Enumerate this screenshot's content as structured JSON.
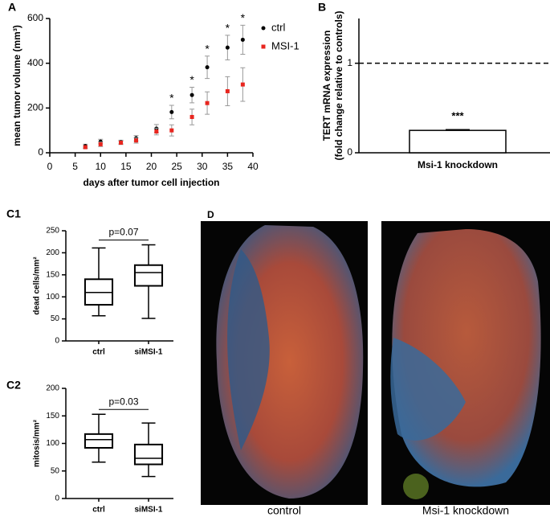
{
  "chart_data": [
    {
      "type": "scatter",
      "panel": "A",
      "x_label": "days after tumor cell injection",
      "y_label": "mean tumor volume (mm³)",
      "x": [
        7,
        10,
        14,
        17,
        21,
        24,
        28,
        31,
        35,
        38
      ],
      "series": [
        {
          "name": "ctrl",
          "color": "#000000",
          "values": [
            30,
            50,
            48,
            65,
            108,
            182,
            258,
            382,
            470,
            505
          ],
          "errors": [
            8,
            10,
            8,
            12,
            18,
            30,
            35,
            50,
            55,
            65
          ]
        },
        {
          "name": "MSI-1",
          "color": "#e8261f",
          "values": [
            25,
            38,
            45,
            55,
            95,
            100,
            160,
            222,
            275,
            305
          ],
          "errors": [
            6,
            10,
            8,
            12,
            15,
            25,
            35,
            50,
            65,
            75
          ]
        }
      ],
      "xlim": [
        0,
        40
      ],
      "xticks": [
        0,
        5,
        10,
        15,
        20,
        25,
        30,
        35,
        40
      ],
      "ylim": [
        0,
        600
      ],
      "yticks": [
        0,
        200,
        400,
        600
      ],
      "significance": [
        {
          "x": 24,
          "label": "*"
        },
        {
          "x": 28,
          "label": "*"
        },
        {
          "x": 31,
          "label": "*"
        },
        {
          "x": 35,
          "label": "*"
        },
        {
          "x": 38,
          "label": "*"
        }
      ],
      "legend": "upper right"
    },
    {
      "type": "bar",
      "panel": "B",
      "y_label": [
        "TERT mRNA expression",
        "(fold change relative to controls)"
      ],
      "categories": [
        "Msi-1 knockdown"
      ],
      "values": [
        0.25
      ],
      "errors": [
        0.01
      ],
      "significance": [
        "***"
      ],
      "reference_line": 1,
      "color": "#ffffff",
      "ylim": [
        0,
        1.5
      ],
      "yticks": [
        0,
        1
      ]
    },
    {
      "type": "box",
      "panel": "C1",
      "y_label": "dead cells/mm²",
      "categories": [
        "ctrl",
        "siMSI-1"
      ],
      "boxes": [
        {
          "min": 57,
          "q1": 82,
          "median": 110,
          "q3": 140,
          "max": 211
        },
        {
          "min": 51,
          "q1": 125,
          "median": 155,
          "q3": 172,
          "max": 218
        }
      ],
      "p_label": "p=0.07",
      "ylim": [
        0,
        250
      ],
      "yticks": [
        0,
        50,
        100,
        150,
        200,
        250
      ]
    },
    {
      "type": "box",
      "panel": "C2",
      "y_label": "mitosis/mm²",
      "categories": [
        "ctrl",
        "siMSI-1"
      ],
      "boxes": [
        {
          "min": 66,
          "q1": 92,
          "median": 107,
          "q3": 117,
          "max": 153
        },
        {
          "min": 40,
          "q1": 62,
          "median": 73,
          "q3": 98,
          "max": 137
        }
      ],
      "p_label": "p=0.03",
      "ylim": [
        0,
        200
      ],
      "yticks": [
        0,
        50,
        100,
        150,
        200
      ]
    }
  ],
  "images": {
    "panel": "D",
    "labels": [
      "control",
      "Msi-1 knockdown"
    ]
  }
}
